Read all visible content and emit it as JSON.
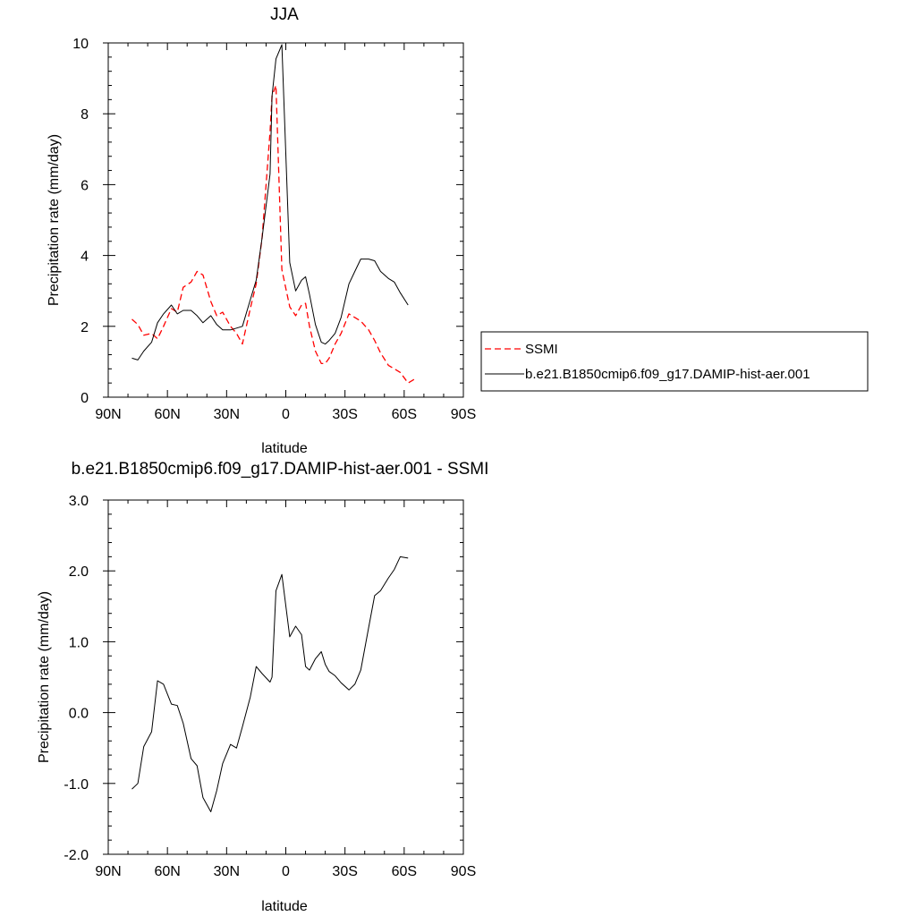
{
  "chart_data": [
    {
      "type": "line",
      "title": "JJA",
      "xlabel": "latitude",
      "ylabel": "Precipitation rate (mm/day)",
      "xlim": [
        90,
        -90
      ],
      "ylim": [
        0,
        10
      ],
      "xticks": [
        90,
        60,
        30,
        0,
        -30,
        -60,
        -90
      ],
      "xtick_labels": [
        "90N",
        "60N",
        "30N",
        "0",
        "30S",
        "60S",
        "90S"
      ],
      "yticks": [
        0,
        2,
        4,
        6,
        8,
        10
      ],
      "ytick_labels": [
        "0",
        "2",
        "4",
        "6",
        "8",
        "10"
      ],
      "legend_position": "right",
      "series": [
        {
          "name": "SSMI",
          "color": "#ff0000",
          "dash": "dashed",
          "x": [
            78,
            75,
            72,
            68,
            65,
            62,
            58,
            55,
            52,
            48,
            45,
            42,
            38,
            35,
            32,
            28,
            25,
            22,
            18,
            15,
            12,
            8,
            7,
            5,
            2,
            -2,
            -5,
            -8,
            -10,
            -12,
            -15,
            -18,
            -20,
            -22,
            -25,
            -28,
            -32,
            -35,
            -38,
            -42,
            -45,
            -48,
            -52,
            -55,
            -58,
            -62,
            -65,
            -66
          ],
          "y": [
            2.2,
            2.05,
            1.75,
            1.8,
            1.65,
            2.0,
            2.5,
            2.4,
            3.1,
            3.25,
            3.55,
            3.45,
            2.7,
            2.3,
            2.4,
            2.0,
            1.8,
            1.5,
            2.5,
            3.2,
            4.5,
            7.5,
            8.5,
            8.8,
            3.6,
            2.55,
            2.3,
            2.6,
            2.65,
            2.0,
            1.3,
            0.95,
            0.95,
            1.1,
            1.5,
            1.8,
            2.35,
            2.25,
            2.15,
            1.9,
            1.6,
            1.25,
            0.9,
            0.8,
            0.7,
            0.4,
            0.5,
            0.5
          ]
        },
        {
          "name": "b.e21.B1850cmip6.f09_g17.DAMIP-hist-aer.001",
          "color": "#000000",
          "dash": "solid",
          "x": [
            78,
            75,
            72,
            68,
            65,
            62,
            58,
            55,
            52,
            48,
            45,
            42,
            38,
            35,
            32,
            28,
            25,
            22,
            18,
            15,
            12,
            8,
            7,
            5,
            2,
            -2,
            -5,
            -8,
            -10,
            -12,
            -15,
            -18,
            -20,
            -22,
            -25,
            -28,
            -32,
            -35,
            -38,
            -42,
            -45,
            -48,
            -52,
            -55,
            -58,
            -62
          ],
          "y": [
            1.1,
            1.05,
            1.3,
            1.55,
            2.1,
            2.35,
            2.6,
            2.35,
            2.45,
            2.45,
            2.3,
            2.1,
            2.3,
            2.05,
            1.9,
            1.9,
            1.95,
            2.0,
            2.75,
            3.3,
            4.5,
            6.3,
            8.5,
            9.55,
            9.95,
            3.8,
            3.0,
            3.3,
            3.4,
            2.9,
            2.05,
            1.55,
            1.5,
            1.6,
            1.8,
            2.25,
            3.2,
            3.55,
            3.9,
            3.9,
            3.85,
            3.55,
            3.35,
            3.25,
            2.95,
            2.6
          ]
        }
      ]
    },
    {
      "type": "line",
      "title": "b.e21.B1850cmip6.f09_g17.DAMIP-hist-aer.001 - SSMI",
      "xlabel": "latitude",
      "ylabel": "Precipitation rate (mm/day)",
      "xlim": [
        90,
        -90
      ],
      "ylim": [
        -2.0,
        3.0
      ],
      "xticks": [
        90,
        60,
        30,
        0,
        -30,
        -60,
        -90
      ],
      "xtick_labels": [
        "90N",
        "60N",
        "30N",
        "0",
        "30S",
        "60S",
        "90S"
      ],
      "yticks": [
        -2,
        -1,
        0,
        1,
        2,
        3
      ],
      "ytick_labels": [
        "-2.0",
        "-1.0",
        "0.0",
        "1.0",
        "2.0",
        "3.0"
      ],
      "series": [
        {
          "color": "#000000",
          "dash": "solid",
          "x": [
            78,
            75,
            72,
            68,
            65,
            62,
            58,
            55,
            52,
            48,
            45,
            42,
            38,
            35,
            32,
            28,
            25,
            22,
            18,
            15,
            12,
            8,
            7,
            5,
            2,
            -2,
            -5,
            -8,
            -10,
            -12,
            -15,
            -18,
            -20,
            -22,
            -25,
            -28,
            -32,
            -35,
            -38,
            -42,
            -45,
            -48,
            -52,
            -55,
            -58,
            -62
          ],
          "y": [
            -1.08,
            -1.0,
            -0.48,
            -0.27,
            0.45,
            0.4,
            0.12,
            0.1,
            -0.15,
            -0.65,
            -0.75,
            -1.2,
            -1.4,
            -1.1,
            -0.72,
            -0.45,
            -0.5,
            -0.2,
            0.22,
            0.65,
            0.55,
            0.43,
            0.5,
            1.72,
            1.95,
            1.07,
            1.22,
            1.1,
            0.65,
            0.6,
            0.76,
            0.86,
            0.68,
            0.58,
            0.52,
            0.42,
            0.32,
            0.4,
            0.6,
            1.2,
            1.65,
            1.72,
            1.9,
            2.02,
            2.2,
            2.18
          ]
        }
      ]
    }
  ]
}
